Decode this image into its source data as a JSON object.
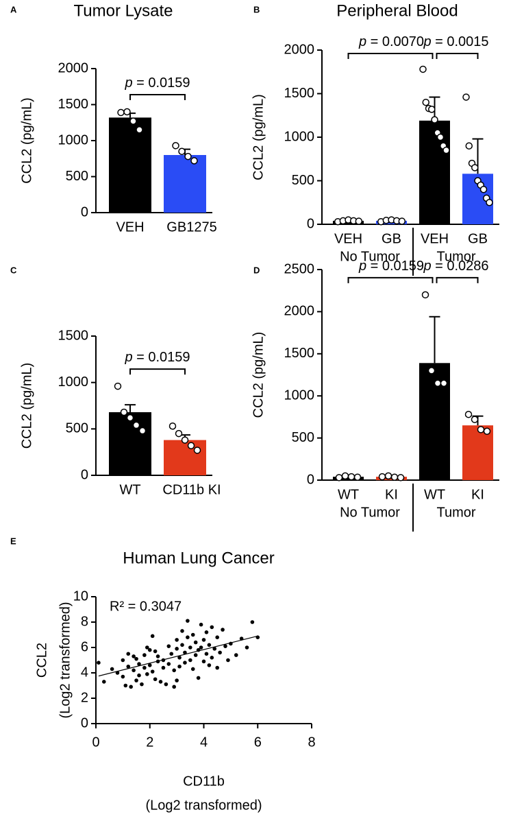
{
  "chart_data": [
    {
      "type": "bar",
      "panel": "A",
      "title": "Tumor Lysate",
      "ylabel": "CCL2 (pg/mL)",
      "categories": [
        "VEH",
        "GB1275"
      ],
      "values": [
        1320,
        800
      ],
      "errors": [
        60,
        80
      ],
      "colors": [
        "#000000",
        "#2a4cf5"
      ],
      "points": [
        [
          1390,
          1400,
          1270,
          1150
        ],
        [
          930,
          850,
          780,
          720
        ]
      ],
      "ylim": [
        0,
        2000
      ],
      "yticks": [
        0,
        500,
        1000,
        1500,
        2000
      ],
      "annotations": [
        {
          "text": "p = 0.0159",
          "between": [
            0,
            1
          ]
        }
      ]
    },
    {
      "type": "bar",
      "panel": "B",
      "title": "Peripheral Blood",
      "ylabel": "CCL2 (pg/mL)",
      "categories": [
        "VEH",
        "GB",
        "VEH",
        "GB"
      ],
      "values": [
        40,
        40,
        1190,
        580
      ],
      "errors": [
        10,
        10,
        270,
        400
      ],
      "colors": [
        "#000000",
        "#2a4cf5",
        "#000000",
        "#2a4cf5"
      ],
      "points": [
        [
          30,
          40,
          50,
          40,
          35
        ],
        [
          30,
          45,
          50,
          40,
          35
        ],
        [
          1780,
          1400,
          1330,
          1320,
          1200,
          1050,
          1000,
          900,
          850
        ],
        [
          1460,
          900,
          700,
          650,
          500,
          450,
          400,
          300,
          250
        ]
      ],
      "groups": [
        "No Tumor",
        "Tumor"
      ],
      "ylim": [
        0,
        2000
      ],
      "yticks": [
        0,
        500,
        1000,
        1500,
        2000
      ],
      "annotations": [
        {
          "text": "p = 0.0070",
          "between": [
            0,
            2
          ]
        },
        {
          "text": "p = 0.0015",
          "between": [
            2,
            3
          ]
        }
      ]
    },
    {
      "type": "bar",
      "panel": "C",
      "ylabel": "CCL2 (pg/mL)",
      "categories": [
        "WT",
        "CD11b KI"
      ],
      "values": [
        680,
        380
      ],
      "errors": [
        80,
        55
      ],
      "colors": [
        "#000000",
        "#e2391b"
      ],
      "points": [
        [
          960,
          680,
          620,
          540,
          480
        ],
        [
          530,
          450,
          380,
          320,
          270
        ]
      ],
      "ylim": [
        0,
        1500
      ],
      "yticks": [
        0,
        500,
        1000,
        1500
      ],
      "annotations": [
        {
          "text": "p = 0.0159",
          "between": [
            0,
            1
          ]
        }
      ]
    },
    {
      "type": "bar",
      "panel": "D",
      "ylabel": "CCL2 (pg/mL)",
      "categories": [
        "WT",
        "KI",
        "WT",
        "KI"
      ],
      "values": [
        40,
        40,
        1390,
        650
      ],
      "errors": [
        10,
        10,
        550,
        110
      ],
      "colors": [
        "#000000",
        "#e2391b",
        "#000000",
        "#e2391b"
      ],
      "points": [
        [
          30,
          50,
          40,
          35
        ],
        [
          40,
          50,
          35,
          30
        ],
        [
          2200,
          1300,
          1150,
          1150
        ],
        [
          780,
          720,
          600,
          580
        ]
      ],
      "groups": [
        "No Tumor",
        "Tumor"
      ],
      "ylim": [
        0,
        2500
      ],
      "yticks": [
        0,
        500,
        1000,
        1500,
        2000,
        2500
      ],
      "annotations": [
        {
          "text": "p = 0.0159",
          "between": [
            0,
            2
          ]
        },
        {
          "text": "p = 0.0286",
          "between": [
            2,
            3
          ]
        }
      ]
    },
    {
      "type": "scatter",
      "panel": "E",
      "title": "Human Lung Cancer",
      "xlabel": [
        "CD11b",
        "(Log2 transformed)"
      ],
      "ylabel": [
        "CCL2",
        "(Log2 transformed)"
      ],
      "annotation": "R² = 0.3047",
      "x": [
        0.1,
        0.3,
        0.6,
        0.8,
        1.0,
        1.0,
        1.1,
        1.2,
        1.2,
        1.3,
        1.4,
        1.4,
        1.5,
        1.5,
        1.6,
        1.6,
        1.7,
        1.8,
        1.8,
        1.9,
        2.0,
        2.0,
        2.1,
        2.1,
        2.2,
        2.3,
        2.3,
        2.4,
        2.5,
        2.5,
        2.6,
        2.7,
        2.7,
        2.8,
        2.9,
        2.9,
        3.0,
        3.0,
        3.1,
        3.1,
        3.2,
        3.2,
        3.3,
        3.3,
        3.4,
        3.4,
        3.5,
        3.5,
        3.6,
        3.6,
        3.7,
        3.7,
        3.8,
        3.8,
        3.9,
        3.9,
        4.0,
        4.0,
        4.1,
        4.1,
        4.2,
        4.2,
        4.3,
        4.3,
        4.4,
        4.5,
        4.5,
        4.6,
        4.7,
        4.8,
        4.9,
        5.0,
        5.2,
        5.4,
        5.6,
        5.8,
        6.0,
        3.0,
        2.2,
        1.9
      ],
      "y": [
        4.8,
        3.3,
        4.3,
        4.0,
        3.7,
        5.0,
        3.0,
        5.5,
        4.5,
        2.9,
        5.3,
        4.2,
        3.4,
        5.1,
        4.7,
        3.8,
        3.1,
        5.4,
        4.4,
        3.9,
        4.6,
        5.8,
        6.9,
        4.1,
        3.5,
        4.9,
        5.3,
        3.3,
        4.4,
        5.0,
        3.1,
        6.1,
        4.7,
        5.5,
        2.9,
        4.2,
        5.9,
        6.6,
        4.5,
        5.2,
        6.2,
        7.3,
        5.6,
        4.8,
        6.8,
        8.1,
        5.0,
        6.0,
        4.3,
        7.0,
        5.4,
        6.4,
        3.6,
        5.8,
        7.8,
        6.0,
        4.9,
        6.6,
        5.5,
        7.2,
        4.6,
        6.2,
        5.2,
        7.6,
        5.9,
        4.4,
        6.8,
        5.6,
        7.4,
        6.1,
        5.0,
        6.3,
        5.4,
        6.7,
        6.0,
        8.0,
        6.8,
        3.4,
        5.7,
        6.0
      ],
      "trendline": {
        "x": [
          0.1,
          6
        ],
        "y": [
          3.75,
          6.9
        ]
      },
      "color": "#000000",
      "xlim": [
        0,
        8
      ],
      "xticks": [
        0,
        2,
        4,
        6,
        8
      ],
      "ylim": [
        0,
        10
      ],
      "yticks": [
        0,
        2,
        4,
        6,
        8,
        10
      ]
    }
  ]
}
